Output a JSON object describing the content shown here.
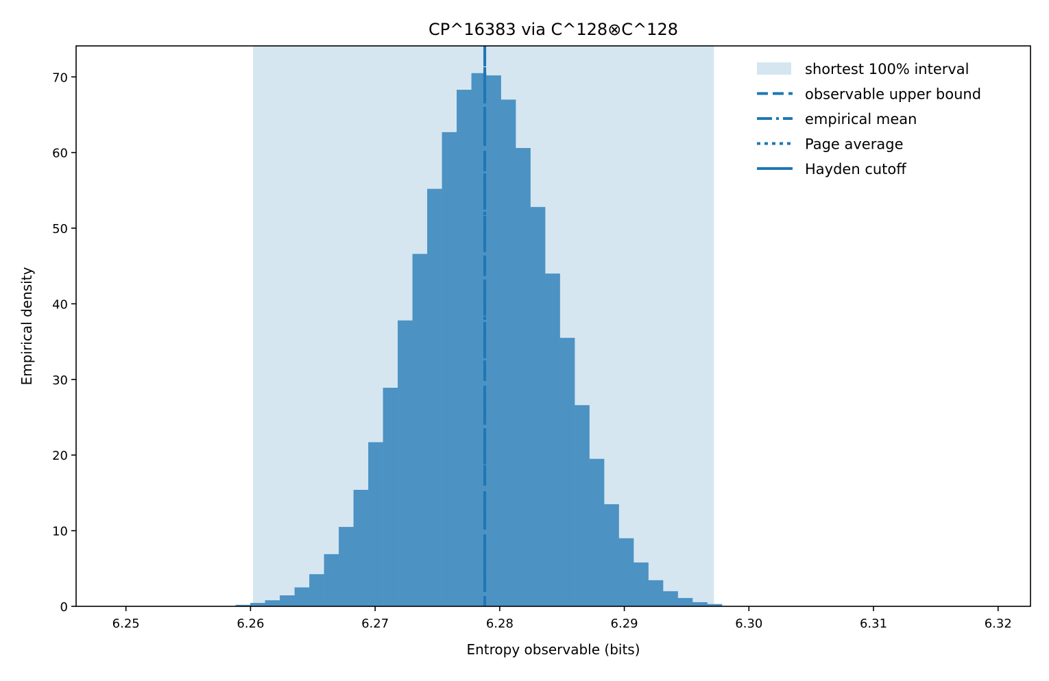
{
  "chart_data": {
    "type": "bar",
    "subtype": "histogram",
    "title": "CP^16383 via C^128⊗C^128",
    "xlabel": "Entropy observable (bits)",
    "ylabel": "Empirical density",
    "xlim": [
      6.246,
      6.3226
    ],
    "ylim": [
      0,
      74.1
    ],
    "xticks": [
      6.25,
      6.26,
      6.27,
      6.28,
      6.29,
      6.3,
      6.31,
      6.32
    ],
    "xtick_labels": [
      "6.25",
      "6.26",
      "6.27",
      "6.28",
      "6.29",
      "6.30",
      "6.31",
      "6.32"
    ],
    "yticks": [
      0,
      10,
      20,
      30,
      40,
      50,
      60,
      70
    ],
    "ytick_labels": [
      "0",
      "10",
      "20",
      "30",
      "40",
      "50",
      "60",
      "70"
    ],
    "grid": false,
    "legend_position": "upper-right",
    "bin_start": 6.2588,
    "bin_width": 0.001183,
    "values": [
      0.2,
      0.45,
      0.8,
      1.45,
      2.5,
      4.25,
      6.9,
      10.5,
      15.4,
      21.7,
      28.9,
      37.8,
      46.6,
      55.2,
      62.7,
      68.3,
      70.5,
      70.2,
      67.0,
      60.6,
      52.8,
      44.0,
      35.5,
      26.6,
      19.5,
      13.5,
      9.0,
      5.8,
      3.45,
      2.0,
      1.1,
      0.55,
      0.3
    ],
    "interval": [
      6.2602,
      6.2972
    ],
    "upper_bound": 6.2788,
    "mean": 6.2788,
    "colors": {
      "bar": "#4c92c3",
      "interval": "#d5e6f1",
      "line": "#1f77b4"
    },
    "legend": [
      {
        "label": "shortest 100% interval",
        "style": "patch"
      },
      {
        "label": "observable upper bound",
        "style": "dashed"
      },
      {
        "label": "empirical mean",
        "style": "dashdot"
      },
      {
        "label": "Page average",
        "style": "dotted"
      },
      {
        "label": "Hayden cutoff",
        "style": "solid"
      }
    ]
  }
}
